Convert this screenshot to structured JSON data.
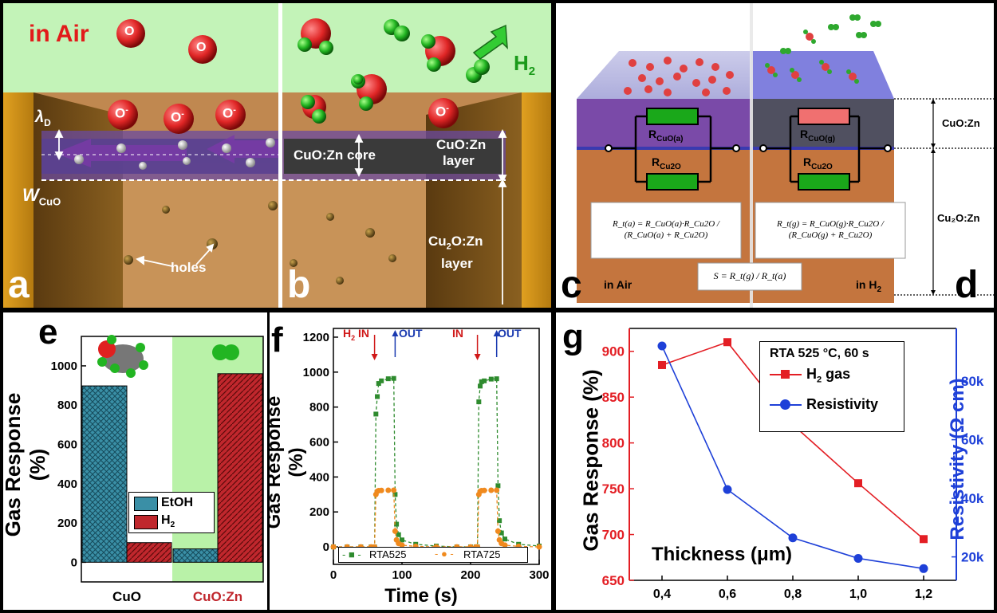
{
  "panel_labels": {
    "a": "a",
    "b": "b",
    "c": "c",
    "d": "d",
    "e": "e",
    "f": "f",
    "g": "g"
  },
  "ab": {
    "in_air": "in Air",
    "h2": "H",
    "h2_sub": "2",
    "o": "O",
    "o_minus": "O",
    "lambda_d": "λ",
    "lambda_d_sub": "D",
    "w_cuo": "W",
    "w_cuo_sub": "CuO",
    "core": "CuO:Zn core",
    "layer_top": "CuO:Zn",
    "layer_top2": "layer",
    "layer_bottom": "Cu",
    "layer_bottom_sub": "2",
    "layer_bottom_rest": "O:Zn",
    "layer_bottom2": "layer",
    "holes": "holes"
  },
  "cd": {
    "r_air": "R",
    "r_air_sub": "CuO(a)",
    "r_gas_sub": "CuO(g)",
    "r_cu2o_sub": "Cu2O",
    "cuozn": "CuO:Zn",
    "cu2ozn": "Cu₂O:Zn",
    "eq_air": "R_t(a) = R_CuO(a)·R_Cu2O / (R_CuO(a) + R_Cu2O)",
    "eq_gas": "R_t(g) = R_CuO(g)·R_Cu2O / (R_CuO(g) + R_Cu2O)",
    "eq_s": "S = R_t(g) / R_t(a)",
    "in_air": "in Air",
    "in_h2": "in H",
    "in_h2_sub": "2"
  },
  "chart_data": [
    {
      "type": "bar",
      "panel": "e",
      "categories": [
        "CuO",
        "CuO:Zn"
      ],
      "series": [
        {
          "name": "EtOH",
          "values": [
            898,
            68
          ]
        },
        {
          "name": "H",
          "values": [
            100,
            960
          ]
        }
      ],
      "legend_sub": "2",
      "ylabel": "Gas Response (%)",
      "ylim": [
        -100,
        1150
      ],
      "yticks": [
        "0",
        "200",
        "400",
        "600",
        "800",
        "1000"
      ],
      "legend_position": "center",
      "colors": {
        "EtOH": "#3a8fa6",
        "H2": "#c0272d",
        "highlight": "#b9f2a8"
      }
    },
    {
      "type": "line",
      "panel": "f",
      "xlabel": "Time (s)",
      "ylabel": "Gas Response (%)",
      "xlim": [
        0,
        300
      ],
      "ylim": [
        -100,
        1250
      ],
      "xticks": [
        "0",
        "100",
        "200",
        "300"
      ],
      "yticks": [
        "0",
        "200",
        "400",
        "600",
        "800",
        "1000",
        "1200"
      ],
      "annotations": {
        "h2_in": "H",
        "h2_in_sub": "2",
        "in_suffix": " IN",
        "in": "IN",
        "out": "OUT"
      },
      "legend_position": "bottom",
      "series": [
        {
          "name": "RTA525",
          "color": "#2e8b2e",
          "x": [
            0,
            20,
            40,
            55,
            60,
            62,
            64,
            66,
            70,
            80,
            88,
            90,
            92,
            95,
            100,
            120,
            150,
            180,
            200,
            208,
            210,
            212,
            214,
            216,
            220,
            230,
            238,
            240,
            242,
            245,
            250,
            270,
            300
          ],
          "y": [
            0,
            0,
            0,
            0,
            0,
            760,
            860,
            935,
            950,
            962,
            964,
            300,
            130,
            70,
            40,
            15,
            5,
            0,
            0,
            0,
            0,
            830,
            920,
            945,
            950,
            960,
            962,
            350,
            150,
            80,
            45,
            15,
            5
          ]
        },
        {
          "name": "RTA725",
          "color": "#f08a1e",
          "x": [
            0,
            20,
            40,
            55,
            60,
            62,
            64,
            66,
            70,
            80,
            88,
            90,
            92,
            95,
            100,
            120,
            150,
            180,
            200,
            208,
            210,
            212,
            214,
            216,
            220,
            230,
            238,
            240,
            242,
            245,
            250,
            270,
            300
          ],
          "y": [
            0,
            0,
            0,
            0,
            0,
            300,
            318,
            322,
            323,
            324,
            324,
            90,
            40,
            20,
            10,
            3,
            0,
            0,
            0,
            0,
            0,
            300,
            318,
            322,
            323,
            324,
            324,
            90,
            40,
            20,
            10,
            3,
            0
          ]
        }
      ]
    },
    {
      "type": "line",
      "panel": "g",
      "title": "RTA 525 °C, 60 s",
      "xlabel": "Thickness (μm)",
      "ylabel_left": "Gas Response (%)",
      "ylabel_right": "Resistivity (Ω cm)",
      "x": [
        0.4,
        0.6,
        0.8,
        1.0,
        1.2
      ],
      "xticks": [
        "0,4",
        "0,6",
        "0,8",
        "1,0",
        "1,2"
      ],
      "ylim_left": [
        650,
        925
      ],
      "yticks_left": [
        "650",
        "700",
        "750",
        "800",
        "850",
        "900"
      ],
      "ylim_right": [
        12000,
        98000
      ],
      "yticks_right": [
        "20k",
        "40k",
        "60k",
        "80k"
      ],
      "legend_sub": "2",
      "series": [
        {
          "name": "H",
          "legend_suffix": " gas",
          "axis": "left",
          "color": "#e31e24",
          "values": [
            885,
            910,
            820,
            756,
            695
          ]
        },
        {
          "name": "Resistivity",
          "axis": "right",
          "color": "#1e40d8",
          "values": [
            92000,
            43000,
            26500,
            19500,
            16000
          ]
        }
      ]
    }
  ]
}
